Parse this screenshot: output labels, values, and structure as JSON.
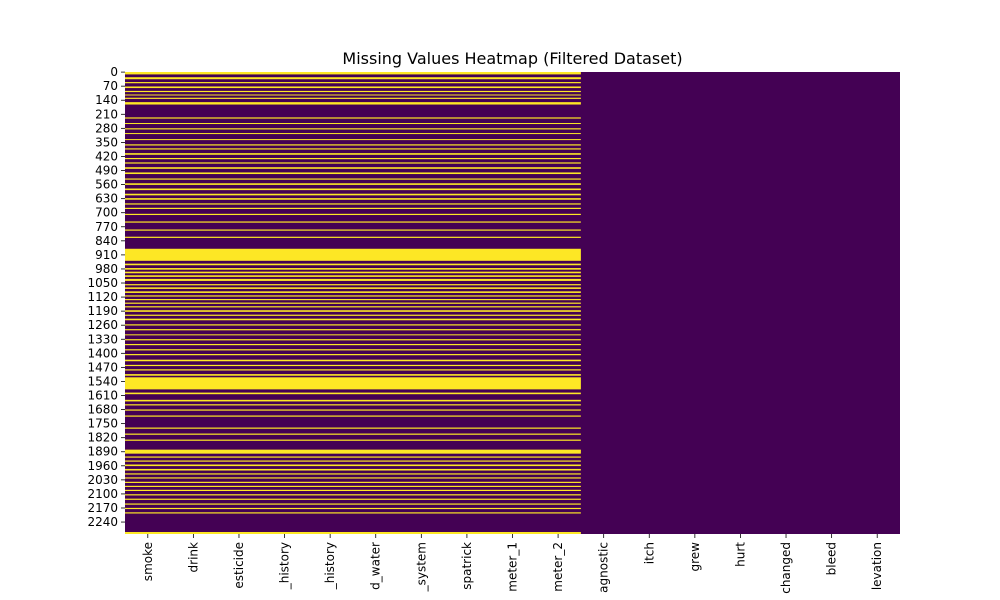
{
  "chart_data": {
    "type": "heatmap",
    "title": "Missing Values Heatmap (Filtered Dataset)",
    "xlabel": "",
    "ylabel": "",
    "n_rows": 2300,
    "columns": [
      "smoke",
      "drink",
      "esticide",
      "_history",
      "_history",
      "d_water",
      "_system",
      "spatrick",
      "meter_1",
      "meter_2",
      "agnostic",
      "itch",
      "grew",
      "hurt",
      "changed",
      "bleed",
      "levation"
    ],
    "y_ticks": [
      0,
      70,
      140,
      210,
      280,
      350,
      420,
      490,
      560,
      630,
      700,
      770,
      840,
      910,
      980,
      1050,
      1120,
      1190,
      1260,
      1330,
      1400,
      1470,
      1540,
      1610,
      1680,
      1750,
      1820,
      1890,
      1960,
      2030,
      2100,
      2170,
      2240
    ],
    "colors": {
      "missing": "#fde725",
      "present": "#440154"
    },
    "missing_columns": [
      "smoke",
      "drink",
      "esticide",
      "_history",
      "_history",
      "d_water",
      "_system",
      "spatrick",
      "meter_1",
      "meter_2"
    ],
    "missing_row_ranges": [
      [
        0,
        12
      ],
      [
        26,
        36
      ],
      [
        50,
        56
      ],
      [
        72,
        80
      ],
      [
        94,
        100
      ],
      [
        112,
        116
      ],
      [
        128,
        134
      ],
      [
        150,
        162
      ],
      [
        226,
        232
      ],
      [
        254,
        258
      ],
      [
        280,
        286
      ],
      [
        304,
        308
      ],
      [
        334,
        338
      ],
      [
        360,
        366
      ],
      [
        380,
        386
      ],
      [
        404,
        412
      ],
      [
        428,
        434
      ],
      [
        450,
        456
      ],
      [
        474,
        482
      ],
      [
        500,
        508
      ],
      [
        530,
        536
      ],
      [
        554,
        562
      ],
      [
        580,
        588
      ],
      [
        606,
        614
      ],
      [
        628,
        636
      ],
      [
        654,
        660
      ],
      [
        676,
        682
      ],
      [
        706,
        712
      ],
      [
        744,
        750
      ],
      [
        784,
        790
      ],
      [
        820,
        826
      ],
      [
        880,
        940
      ],
      [
        954,
        962
      ],
      [
        976,
        984
      ],
      [
        994,
        1002
      ],
      [
        1012,
        1020
      ],
      [
        1030,
        1040
      ],
      [
        1056,
        1062
      ],
      [
        1072,
        1080
      ],
      [
        1092,
        1100
      ],
      [
        1112,
        1118
      ],
      [
        1130,
        1136
      ],
      [
        1148,
        1154
      ],
      [
        1166,
        1172
      ],
      [
        1186,
        1194
      ],
      [
        1208,
        1214
      ],
      [
        1228,
        1236
      ],
      [
        1256,
        1262
      ],
      [
        1280,
        1286
      ],
      [
        1306,
        1310
      ],
      [
        1330,
        1336
      ],
      [
        1354,
        1360
      ],
      [
        1380,
        1386
      ],
      [
        1404,
        1410
      ],
      [
        1432,
        1440
      ],
      [
        1458,
        1464
      ],
      [
        1480,
        1486
      ],
      [
        1504,
        1512
      ],
      [
        1520,
        1580
      ],
      [
        1596,
        1604
      ],
      [
        1632,
        1640
      ],
      [
        1654,
        1660
      ],
      [
        1680,
        1686
      ],
      [
        1710,
        1716
      ],
      [
        1770,
        1776
      ],
      [
        1800,
        1806
      ],
      [
        1830,
        1836
      ],
      [
        1880,
        1900
      ],
      [
        1914,
        1920
      ],
      [
        1934,
        1940
      ],
      [
        1954,
        1962
      ],
      [
        1976,
        1984
      ],
      [
        1998,
        2004
      ],
      [
        2018,
        2024
      ],
      [
        2040,
        2046
      ],
      [
        2060,
        2066
      ],
      [
        2080,
        2086
      ],
      [
        2102,
        2108
      ],
      [
        2124,
        2130
      ],
      [
        2148,
        2154
      ],
      [
        2170,
        2176
      ],
      [
        2192,
        2198
      ],
      [
        2290,
        2300
      ]
    ],
    "grid": false,
    "legend": "none"
  }
}
